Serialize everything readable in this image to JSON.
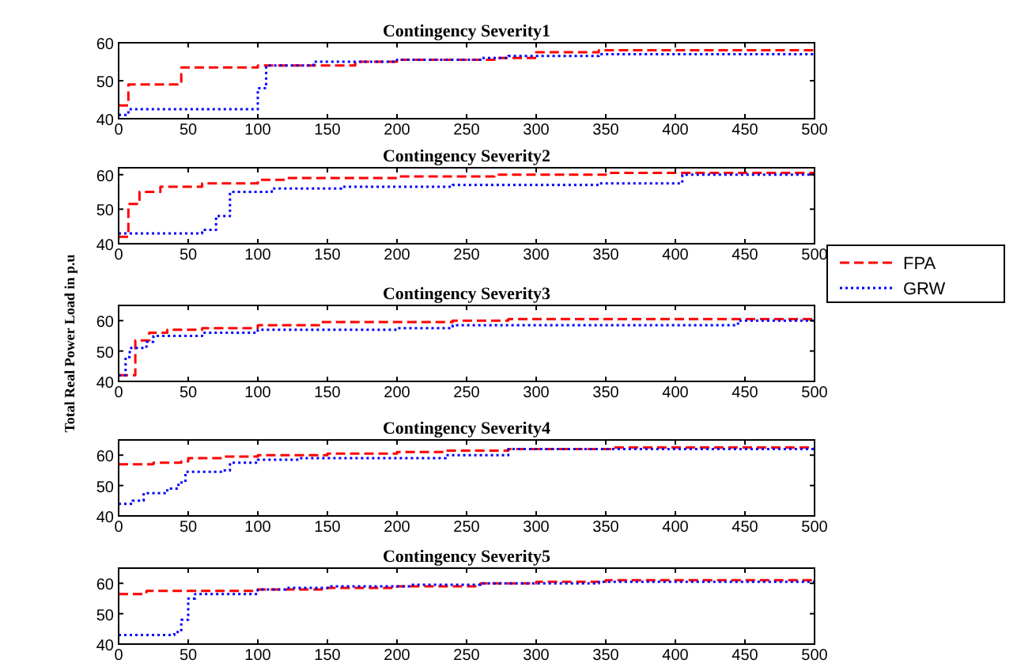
{
  "chart_data": [
    {
      "type": "step",
      "title": "Contingency Severity1",
      "xlim": [
        0,
        500
      ],
      "xticks": [
        0,
        50,
        100,
        150,
        200,
        250,
        300,
        350,
        400,
        450,
        500
      ],
      "ylim": [
        40,
        60
      ],
      "yticks": [
        40,
        50,
        60
      ],
      "series": [
        {
          "color": "#ff0000",
          "line_style": "dashed",
          "x": [
            0,
            7,
            45,
            100,
            170,
            200,
            270,
            300,
            345,
            500
          ],
          "values": [
            43.5,
            49,
            53.5,
            54,
            55,
            55.5,
            56,
            57.5,
            58,
            58
          ]
        },
        {
          "color": "#0000ff",
          "line_style": "dotted",
          "x": [
            0,
            7,
            100,
            106,
            140,
            200,
            260,
            280,
            345,
            500
          ],
          "values": [
            41,
            42.5,
            48,
            54,
            55,
            55.5,
            56,
            56.5,
            57,
            57
          ]
        }
      ]
    },
    {
      "type": "step",
      "title": "Contingency Severity2",
      "xlim": [
        0,
        500
      ],
      "xticks": [
        0,
        50,
        100,
        150,
        200,
        250,
        300,
        350,
        400,
        450,
        500
      ],
      "ylim": [
        40,
        62
      ],
      "yticks": [
        40,
        50,
        60
      ],
      "legend": "right",
      "series": [
        {
          "name": "FPA",
          "color": "#ff0000",
          "line_style": "dashed",
          "x": [
            0,
            7,
            15,
            30,
            60,
            100,
            120,
            200,
            270,
            350,
            500
          ],
          "values": [
            42,
            51.5,
            55,
            56.5,
            57.5,
            58.5,
            59,
            59.5,
            60,
            60.5,
            60.5
          ]
        },
        {
          "name": "GRW",
          "color": "#0000ff",
          "line_style": "dotted",
          "x": [
            0,
            60,
            70,
            80,
            110,
            160,
            240,
            345,
            405,
            500
          ],
          "values": [
            43,
            44,
            48,
            55,
            56,
            56.5,
            57,
            57.5,
            60,
            60
          ]
        }
      ]
    },
    {
      "type": "step",
      "title": "Contingency Severity3",
      "ylabel": "Total Real Power Load in p.u",
      "xlim": [
        0,
        500
      ],
      "xticks": [
        0,
        50,
        100,
        150,
        200,
        250,
        300,
        350,
        400,
        450,
        500
      ],
      "ylim": [
        40,
        65
      ],
      "yticks": [
        40,
        50,
        60
      ],
      "series": [
        {
          "color": "#ff0000",
          "line_style": "dashed",
          "x": [
            0,
            12,
            22,
            35,
            60,
            100,
            145,
            240,
            280,
            500
          ],
          "values": [
            42,
            53.5,
            56,
            57,
            57.5,
            58.5,
            59.5,
            60,
            60.5,
            60.5
          ]
        },
        {
          "color": "#0000ff",
          "line_style": "dotted",
          "x": [
            0,
            5,
            8,
            20,
            25,
            60,
            100,
            200,
            240,
            445,
            500
          ],
          "values": [
            42,
            48,
            51,
            53,
            55,
            56,
            57,
            57.5,
            58.5,
            60,
            60
          ]
        }
      ]
    },
    {
      "type": "step",
      "title": "Contingency Severity4",
      "xlim": [
        0,
        500
      ],
      "xticks": [
        0,
        50,
        100,
        150,
        200,
        250,
        300,
        350,
        400,
        450,
        500
      ],
      "ylim": [
        40,
        65
      ],
      "yticks": [
        40,
        50,
        60
      ],
      "series": [
        {
          "color": "#ff0000",
          "line_style": "dashed",
          "x": [
            0,
            25,
            45,
            50,
            75,
            100,
            150,
            200,
            235,
            280,
            355,
            500
          ],
          "values": [
            57,
            57.5,
            58,
            59,
            59.5,
            60,
            60.5,
            61,
            61.5,
            62,
            62.5,
            62.5
          ]
        },
        {
          "color": "#0000ff",
          "line_style": "dotted",
          "x": [
            0,
            10,
            18,
            35,
            43,
            48,
            75,
            80,
            100,
            130,
            235,
            280,
            500
          ],
          "values": [
            44,
            45,
            47.5,
            49,
            51,
            54.5,
            55,
            57.5,
            58.5,
            59,
            60,
            62,
            62
          ]
        }
      ]
    },
    {
      "type": "step",
      "title": "Contingency Severity5",
      "xlim": [
        0,
        500
      ],
      "xticks": [
        0,
        50,
        100,
        150,
        200,
        250,
        300,
        350,
        400,
        450,
        500
      ],
      "ylim": [
        40,
        65
      ],
      "yticks": [
        40,
        50,
        60
      ],
      "series": [
        {
          "color": "#ff0000",
          "line_style": "dashed",
          "x": [
            0,
            20,
            100,
            150,
            200,
            260,
            300,
            350,
            500
          ],
          "values": [
            56.5,
            57.5,
            58,
            58.5,
            59,
            60,
            60.5,
            61,
            61
          ]
        },
        {
          "color": "#0000ff",
          "line_style": "dotted",
          "x": [
            0,
            40,
            45,
            50,
            55,
            100,
            120,
            150,
            210,
            260,
            345,
            500
          ],
          "values": [
            43,
            44,
            48,
            55,
            56.5,
            58,
            58.5,
            59,
            59.5,
            60,
            60.5,
            60.5
          ]
        }
      ]
    }
  ]
}
